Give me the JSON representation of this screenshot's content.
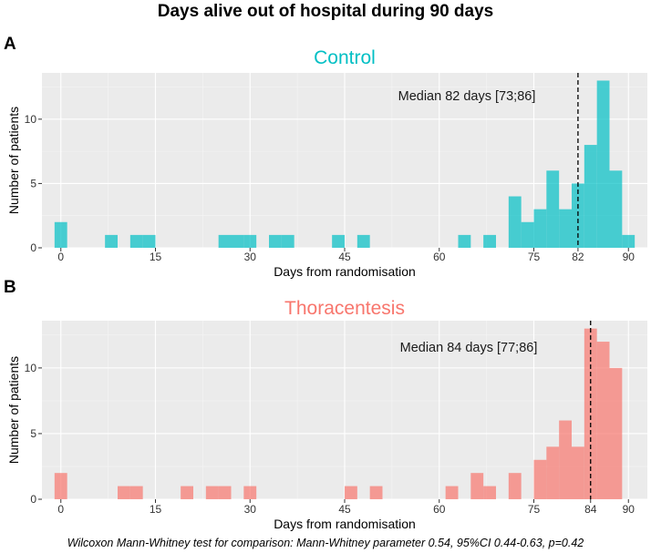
{
  "figure": {
    "title": "Days alive out of hospital during 90 days",
    "footnote": "Wilcoxon Mann-Whitney test for comparison: Mann-Whitney parameter 0.54, 95%CI 0.44-0.63, p=0.42"
  },
  "chart_data": [
    {
      "type": "bar",
      "panel": "A",
      "title": "Control",
      "color": "#00BFC4",
      "xlabel": "Days from randomisation",
      "ylabel": "Number of patients",
      "xticks": [
        0,
        15,
        30,
        45,
        60,
        75,
        82,
        90
      ],
      "yticks": [
        0,
        5,
        10
      ],
      "xlim": [
        -3,
        93
      ],
      "ylim": [
        0,
        13.6
      ],
      "bin_width": 2,
      "bins": [
        {
          "x": 0,
          "count": 2
        },
        {
          "x": 8,
          "count": 1
        },
        {
          "x": 12,
          "count": 1
        },
        {
          "x": 14,
          "count": 1
        },
        {
          "x": 26,
          "count": 1
        },
        {
          "x": 28,
          "count": 1
        },
        {
          "x": 30,
          "count": 1
        },
        {
          "x": 34,
          "count": 1
        },
        {
          "x": 36,
          "count": 1
        },
        {
          "x": 44,
          "count": 1
        },
        {
          "x": 48,
          "count": 1
        },
        {
          "x": 64,
          "count": 1
        },
        {
          "x": 68,
          "count": 1
        },
        {
          "x": 72,
          "count": 4
        },
        {
          "x": 74,
          "count": 2
        },
        {
          "x": 76,
          "count": 3
        },
        {
          "x": 78,
          "count": 6
        },
        {
          "x": 80,
          "count": 3
        },
        {
          "x": 82,
          "count": 5
        },
        {
          "x": 84,
          "count": 8
        },
        {
          "x": 86,
          "count": 13
        },
        {
          "x": 88,
          "count": 6
        },
        {
          "x": 90,
          "count": 1
        }
      ],
      "median_line": 82,
      "annotation": "Median 82 days [73;86]"
    },
    {
      "type": "bar",
      "panel": "B",
      "title": "Thoracentesis",
      "color": "#F8766D",
      "xlabel": "Days from randomisation",
      "ylabel": "Number of patients",
      "xticks": [
        0,
        15,
        30,
        45,
        60,
        75,
        84,
        90
      ],
      "yticks": [
        0,
        5,
        10
      ],
      "xlim": [
        -3,
        93
      ],
      "ylim": [
        0,
        13.6
      ],
      "bin_width": 2,
      "bins": [
        {
          "x": 0,
          "count": 2
        },
        {
          "x": 10,
          "count": 1
        },
        {
          "x": 12,
          "count": 1
        },
        {
          "x": 20,
          "count": 1
        },
        {
          "x": 24,
          "count": 1
        },
        {
          "x": 26,
          "count": 1
        },
        {
          "x": 30,
          "count": 1
        },
        {
          "x": 46,
          "count": 1
        },
        {
          "x": 50,
          "count": 1
        },
        {
          "x": 62,
          "count": 1
        },
        {
          "x": 66,
          "count": 2
        },
        {
          "x": 68,
          "count": 1
        },
        {
          "x": 72,
          "count": 2
        },
        {
          "x": 76,
          "count": 3
        },
        {
          "x": 78,
          "count": 4
        },
        {
          "x": 80,
          "count": 6
        },
        {
          "x": 82,
          "count": 4
        },
        {
          "x": 84,
          "count": 13
        },
        {
          "x": 86,
          "count": 12
        },
        {
          "x": 88,
          "count": 10
        }
      ],
      "median_line": 84,
      "annotation": "Median 84 days [77;86]"
    }
  ]
}
